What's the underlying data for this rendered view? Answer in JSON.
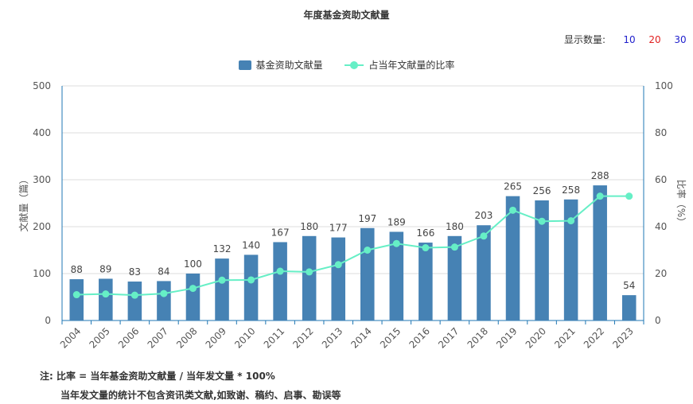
{
  "header": {
    "title": "年度基金资助文献量",
    "count_label": "显示数量:",
    "count_options": [
      {
        "label": "10",
        "color": "#1e1ecc"
      },
      {
        "label": "20",
        "color": "#e02020"
      },
      {
        "label": "30",
        "color": "#1e1ecc"
      }
    ]
  },
  "legend": {
    "bar_label": "基金资助文献量",
    "line_label": "占当年文献量的比率"
  },
  "notes": {
    "line1": "注:  比率 = 当年基金资助文献量 / 当年发文量 * 100%",
    "line2": "当年发文量的统计不包含资讯类文献,如致谢、稿约、启事、勘误等"
  },
  "colors": {
    "bar": "#4682b4",
    "line": "#66efc6",
    "axis": "#1f77b4",
    "grid": "#dddddd"
  },
  "chart_data": {
    "type": "bar",
    "categories": [
      "2004",
      "2005",
      "2006",
      "2007",
      "2008",
      "2009",
      "2010",
      "2011",
      "2012",
      "2013",
      "2014",
      "2015",
      "2016",
      "2017",
      "2018",
      "2019",
      "2020",
      "2021",
      "2022",
      "2023"
    ],
    "series": [
      {
        "name": "基金资助文献量",
        "type": "bar",
        "axis": "left",
        "values": [
          88,
          89,
          83,
          84,
          100,
          132,
          140,
          167,
          180,
          177,
          197,
          189,
          166,
          180,
          203,
          265,
          256,
          258,
          288,
          54
        ]
      },
      {
        "name": "占当年文献量的比率",
        "type": "line",
        "axis": "right",
        "values": [
          11,
          11.3,
          10.8,
          11.5,
          13.7,
          17.2,
          17.3,
          21,
          20.7,
          23.8,
          30,
          32.8,
          31,
          31.3,
          36,
          47,
          42.3,
          42.5,
          53,
          53
        ]
      }
    ],
    "ylabel": "文献量（篇）",
    "y2label": "比率（%）",
    "ylim": [
      0,
      500
    ],
    "y2lim": [
      0,
      100
    ],
    "yticks": [
      0,
      100,
      200,
      300,
      400,
      500
    ],
    "y2ticks": [
      0,
      20,
      40,
      60,
      80,
      100
    ],
    "grid": true,
    "legend_position": "top-center"
  }
}
